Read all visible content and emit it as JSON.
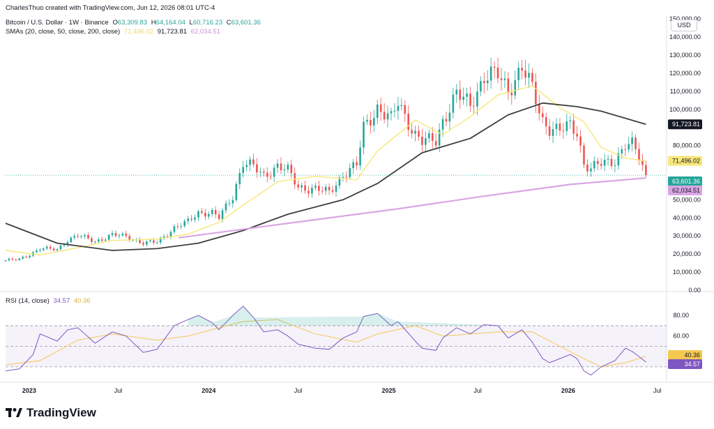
{
  "header": {
    "credit": "CharlesThuo created with TradingView.com, Jun 12, 2026 08:01 UTC-4",
    "symbol": "Bitcoin / U.S. Dollar · 1W · Binance",
    "ohlc": {
      "o_label": "O",
      "o": "63,309.83",
      "h_label": "H",
      "h": "64,164.04",
      "l_label": "L",
      "l": "60,716.23",
      "c_label": "C",
      "c": "63,601.36"
    },
    "sma_label": "SMAs (20, close, 50, close, 200, close)",
    "sma_values": [
      "71,496.02",
      "91,723.81",
      "62,034.51"
    ],
    "currency": "USD"
  },
  "rsi_legend": {
    "label": "RSI (14, close)",
    "rsi": "34.57",
    "rsi_ma": "40.36"
  },
  "logo": {
    "text": "TradingView"
  },
  "colors": {
    "up": "#26a69a",
    "down": "#ef5350",
    "sma20": "#f7e77a",
    "sma50": "#3d3d3d",
    "sma200": "#d9a6e3",
    "rsi": "#7e57c2",
    "rsi_ma": "#f5c851",
    "price_line": "#26a69a"
  },
  "chart_data": [
    {
      "type": "candlestick",
      "title": "Bitcoin / U.S. Dollar · 1W · Binance",
      "y_ticks": [
        0,
        10000,
        20000,
        30000,
        40000,
        50000,
        60000,
        70000,
        80000,
        90000,
        100000,
        110000,
        120000,
        130000,
        140000,
        150000
      ],
      "y_tick_labels": [
        "0.00",
        "10,000.00",
        "20,000.00",
        "30,000.00",
        "40,000.00",
        "50,000.00",
        "",
        "",
        "80,000.00",
        "",
        "100,000.00",
        "110,000.00",
        "120,000.00",
        "130,000.00",
        "140,000.00",
        "150,000.00"
      ],
      "ylim": [
        0,
        152000
      ],
      "x_ticks": [
        "2023",
        "Jul",
        "2024",
        "Jul",
        "2025",
        "Jul",
        "2026",
        "Jul"
      ],
      "x_tick_dates": [
        "2023-01-01",
        "2023-07-01",
        "2024-01-01",
        "2024-07-01",
        "2025-01-01",
        "2025-07-01",
        "2026-01-01",
        "2026-07-01"
      ],
      "x_range": [
        "2022-11-14",
        "2026-07-20"
      ],
      "price_labels": [
        {
          "text": "91,723.81",
          "value": 91723.81,
          "color": "#131722"
        },
        {
          "text": "71,496.02",
          "value": 71496.02,
          "color": "#f7e77a"
        },
        {
          "text": "63,601.36",
          "value": 63601.36,
          "color": "#26a69a"
        },
        {
          "text": "62,034.51",
          "value": 62034.51,
          "color": "#d9a6e3"
        }
      ],
      "last_close": 63601.36,
      "series": [
        {
          "name": "BTC/USD close (weekly, approx.)",
          "points": [
            [
              "2022-11-14",
              16500
            ],
            [
              "2022-12-12",
              17000
            ],
            [
              "2023-01-09",
              20800
            ],
            [
              "2023-01-23",
              23000
            ],
            [
              "2023-02-27",
              22400
            ],
            [
              "2023-03-20",
              27800
            ],
            [
              "2023-04-10",
              30200
            ],
            [
              "2023-05-15",
              27000
            ],
            [
              "2023-06-19",
              30500
            ],
            [
              "2023-07-17",
              29800
            ],
            [
              "2023-08-21",
              26000
            ],
            [
              "2023-09-18",
              26600
            ],
            [
              "2023-10-23",
              34500
            ],
            [
              "2023-11-20",
              37800
            ],
            [
              "2023-12-11",
              43000
            ],
            [
              "2024-01-08",
              42800
            ],
            [
              "2024-01-22",
              40000
            ],
            [
              "2024-02-19",
              52000
            ],
            [
              "2024-03-11",
              71000
            ],
            [
              "2024-04-01",
              68000
            ],
            [
              "2024-04-22",
              63000
            ],
            [
              "2024-05-20",
              69000
            ],
            [
              "2024-06-10",
              66000
            ],
            [
              "2024-07-01",
              57000
            ],
            [
              "2024-08-05",
              56000
            ],
            [
              "2024-09-02",
              54000
            ],
            [
              "2024-09-30",
              64000
            ],
            [
              "2024-10-28",
              69000
            ],
            [
              "2024-11-11",
              90000
            ],
            [
              "2024-12-09",
              101000
            ],
            [
              "2025-01-06",
              94000
            ],
            [
              "2025-01-20",
              104000
            ],
            [
              "2025-02-24",
              86000
            ],
            [
              "2025-03-10",
              82000
            ],
            [
              "2025-04-07",
              83000
            ],
            [
              "2025-04-21",
              94000
            ],
            [
              "2025-05-19",
              108000
            ],
            [
              "2025-06-16",
              103000
            ],
            [
              "2025-07-14",
              118000
            ],
            [
              "2025-08-11",
              119000
            ],
            [
              "2025-09-01",
              111000
            ],
            [
              "2025-09-29",
              123000
            ],
            [
              "2025-10-20",
              111000
            ],
            [
              "2025-11-10",
              94000
            ],
            [
              "2025-11-24",
              90000
            ],
            [
              "2025-12-15",
              88000
            ],
            [
              "2026-01-05",
              91000
            ],
            [
              "2026-01-19",
              88000
            ],
            [
              "2026-02-02",
              70000
            ],
            [
              "2026-02-16",
              67000
            ],
            [
              "2026-03-09",
              70000
            ],
            [
              "2026-04-06",
              72000
            ],
            [
              "2026-04-27",
              80000
            ],
            [
              "2026-05-11",
              80000
            ],
            [
              "2026-05-25",
              74000
            ],
            [
              "2026-06-08",
              63601
            ]
          ]
        },
        {
          "name": "SMA 20",
          "values_label": "71,496.02",
          "points": [
            [
              "2022-11-14",
              22000
            ],
            [
              "2023-01-23",
              19500
            ],
            [
              "2023-04-10",
              23500
            ],
            [
              "2023-06-19",
              27500
            ],
            [
              "2023-09-18",
              28200
            ],
            [
              "2023-11-20",
              31000
            ],
            [
              "2024-01-22",
              37500
            ],
            [
              "2024-03-11",
              47000
            ],
            [
              "2024-05-20",
              60000
            ],
            [
              "2024-08-05",
              63000
            ],
            [
              "2024-10-28",
              61000
            ],
            [
              "2024-12-09",
              77000
            ],
            [
              "2025-02-24",
              94000
            ],
            [
              "2025-04-21",
              86000
            ],
            [
              "2025-06-16",
              96000
            ],
            [
              "2025-08-11",
              108000
            ],
            [
              "2025-10-20",
              113000
            ],
            [
              "2025-12-15",
              101000
            ],
            [
              "2026-02-02",
              93000
            ],
            [
              "2026-03-09",
              79000
            ],
            [
              "2026-04-27",
              73000
            ],
            [
              "2026-06-08",
              71496
            ]
          ]
        },
        {
          "name": "SMA 50",
          "values_label": "91,723.81",
          "points": [
            [
              "2022-11-14",
              37000
            ],
            [
              "2023-02-27",
              26000
            ],
            [
              "2023-06-19",
              22000
            ],
            [
              "2023-09-18",
              23000
            ],
            [
              "2023-12-11",
              26000
            ],
            [
              "2024-03-11",
              33000
            ],
            [
              "2024-06-10",
              42000
            ],
            [
              "2024-09-30",
              50000
            ],
            [
              "2024-12-09",
              59000
            ],
            [
              "2025-03-10",
              76000
            ],
            [
              "2025-06-16",
              84000
            ],
            [
              "2025-09-01",
              97000
            ],
            [
              "2025-11-10",
              103500
            ],
            [
              "2026-01-19",
              101500
            ],
            [
              "2026-03-09",
              99000
            ],
            [
              "2026-06-08",
              91724
            ]
          ]
        },
        {
          "name": "SMA 200",
          "values_label": "62,034.51",
          "points": [
            [
              "2023-11-01",
              29000
            ],
            [
              "2024-06-10",
              37000
            ],
            [
              "2025-01-20",
              45000
            ],
            [
              "2025-07-14",
              52000
            ],
            [
              "2026-01-05",
              58500
            ],
            [
              "2026-06-08",
              62035
            ]
          ]
        }
      ]
    },
    {
      "type": "line",
      "title": "RSI (14, close)",
      "y_ticks": [
        20,
        40,
        60,
        80
      ],
      "y_tick_labels": [
        "",
        "",
        "60.00",
        "80.00"
      ],
      "ylim": [
        17,
        91
      ],
      "bands": [
        30,
        50,
        70
      ],
      "x_range": [
        "2022-11-14",
        "2026-07-20"
      ],
      "price_labels": [
        {
          "text": "40.36",
          "value": 40.36,
          "color": "#f5c851"
        },
        {
          "text": "34.57",
          "value": 34.57,
          "color": "#7e57c2"
        }
      ],
      "series": [
        {
          "name": "RSI",
          "values_label": "34.57",
          "points": [
            [
              "2022-11-14",
              26
            ],
            [
              "2022-12-12",
              28
            ],
            [
              "2023-01-09",
              42
            ],
            [
              "2023-01-23",
              62
            ],
            [
              "2023-02-27",
              55
            ],
            [
              "2023-03-20",
              66
            ],
            [
              "2023-04-10",
              68
            ],
            [
              "2023-05-15",
              53
            ],
            [
              "2023-06-19",
              64
            ],
            [
              "2023-07-17",
              60
            ],
            [
              "2023-08-21",
              44
            ],
            [
              "2023-09-18",
              47
            ],
            [
              "2023-10-23",
              70
            ],
            [
              "2023-11-20",
              76
            ],
            [
              "2023-12-11",
              80
            ],
            [
              "2024-01-08",
              73
            ],
            [
              "2024-01-22",
              66
            ],
            [
              "2024-02-19",
              80
            ],
            [
              "2024-03-11",
              89
            ],
            [
              "2024-04-01",
              78
            ],
            [
              "2024-04-22",
              64
            ],
            [
              "2024-05-20",
              66
            ],
            [
              "2024-06-10",
              60
            ],
            [
              "2024-07-01",
              52
            ],
            [
              "2024-08-05",
              48
            ],
            [
              "2024-09-02",
              47
            ],
            [
              "2024-09-30",
              58
            ],
            [
              "2024-10-28",
              64
            ],
            [
              "2024-11-11",
              79
            ],
            [
              "2024-12-09",
              82
            ],
            [
              "2025-01-06",
              70
            ],
            [
              "2025-01-20",
              74
            ],
            [
              "2025-02-24",
              55
            ],
            [
              "2025-03-10",
              48
            ],
            [
              "2025-04-07",
              46
            ],
            [
              "2025-04-21",
              58
            ],
            [
              "2025-05-19",
              68
            ],
            [
              "2025-06-16",
              62
            ],
            [
              "2025-07-14",
              71
            ],
            [
              "2025-08-11",
              70
            ],
            [
              "2025-09-01",
              58
            ],
            [
              "2025-09-29",
              66
            ],
            [
              "2025-10-20",
              54
            ],
            [
              "2025-11-10",
              38
            ],
            [
              "2025-11-24",
              34
            ],
            [
              "2025-12-15",
              38
            ],
            [
              "2026-01-05",
              42
            ],
            [
              "2026-01-19",
              38
            ],
            [
              "2026-02-02",
              26
            ],
            [
              "2026-02-16",
              22
            ],
            [
              "2026-03-09",
              30
            ],
            [
              "2026-04-06",
              36
            ],
            [
              "2026-04-27",
              48
            ],
            [
              "2026-05-11",
              45
            ],
            [
              "2026-05-25",
              40
            ],
            [
              "2026-06-08",
              34.57
            ]
          ]
        },
        {
          "name": "RSI MA",
          "values_label": "40.36",
          "points": [
            [
              "2022-11-14",
              32
            ],
            [
              "2023-01-23",
              36
            ],
            [
              "2023-04-10",
              56
            ],
            [
              "2023-06-19",
              62
            ],
            [
              "2023-09-18",
              56
            ],
            [
              "2023-11-20",
              60
            ],
            [
              "2024-01-22",
              68
            ],
            [
              "2024-03-11",
              74
            ],
            [
              "2024-05-20",
              76
            ],
            [
              "2024-08-05",
              62
            ],
            [
              "2024-10-28",
              54
            ],
            [
              "2024-12-09",
              62
            ],
            [
              "2025-02-24",
              70
            ],
            [
              "2025-04-21",
              60
            ],
            [
              "2025-06-16",
              62
            ],
            [
              "2025-08-11",
              64
            ],
            [
              "2025-10-20",
              64
            ],
            [
              "2025-12-15",
              50
            ],
            [
              "2026-02-02",
              38
            ],
            [
              "2026-03-09",
              30
            ],
            [
              "2026-04-27",
              34
            ],
            [
              "2026-06-08",
              40.36
            ]
          ]
        }
      ]
    }
  ]
}
